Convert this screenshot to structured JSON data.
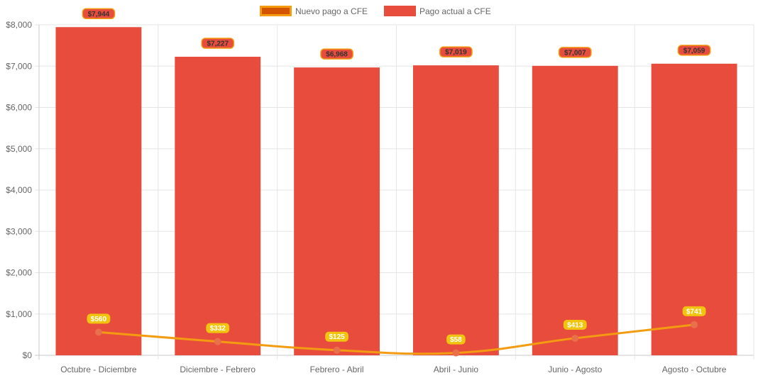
{
  "chart_data": {
    "type": "bar",
    "categories": [
      "Octubre - Diciembre",
      "Diciembre - Febrero",
      "Febrero - Abril",
      "Abril - Junio",
      "Junio - Agosto",
      "Agosto - Octubre"
    ],
    "series": [
      {
        "name": "Nuevo pago a CFE",
        "type": "line",
        "values": [
          560,
          332,
          125,
          58,
          413,
          741
        ],
        "labels": [
          "$560",
          "$332",
          "$125",
          "$58",
          "$413",
          "$741"
        ],
        "color": "#F39C12",
        "point_color": "#E8704A",
        "legend_fill": "#D35400",
        "legend_border": "#F39C12",
        "label_bg": "#F1C40F",
        "label_text_color": "#ffffff"
      },
      {
        "name": "Pago actual a CFE",
        "type": "bar",
        "values": [
          7944,
          7227,
          6968,
          7019,
          7007,
          7059
        ],
        "labels": [
          "$7,944",
          "$7,227",
          "$6,968",
          "$7,019",
          "$7,007",
          "$7,059"
        ],
        "color": "#E74C3C",
        "label_bg": "#E74C3C",
        "label_border": "#F39C12",
        "label_text_color": "#333333"
      }
    ],
    "y_ticks": [
      "$0",
      "$1,000",
      "$2,000",
      "$3,000",
      "$4,000",
      "$5,000",
      "$6,000",
      "$7,000",
      "$8,000"
    ],
    "ylim": [
      0,
      8000
    ],
    "y_step": 1000,
    "grid": true,
    "legend_position": "top"
  }
}
